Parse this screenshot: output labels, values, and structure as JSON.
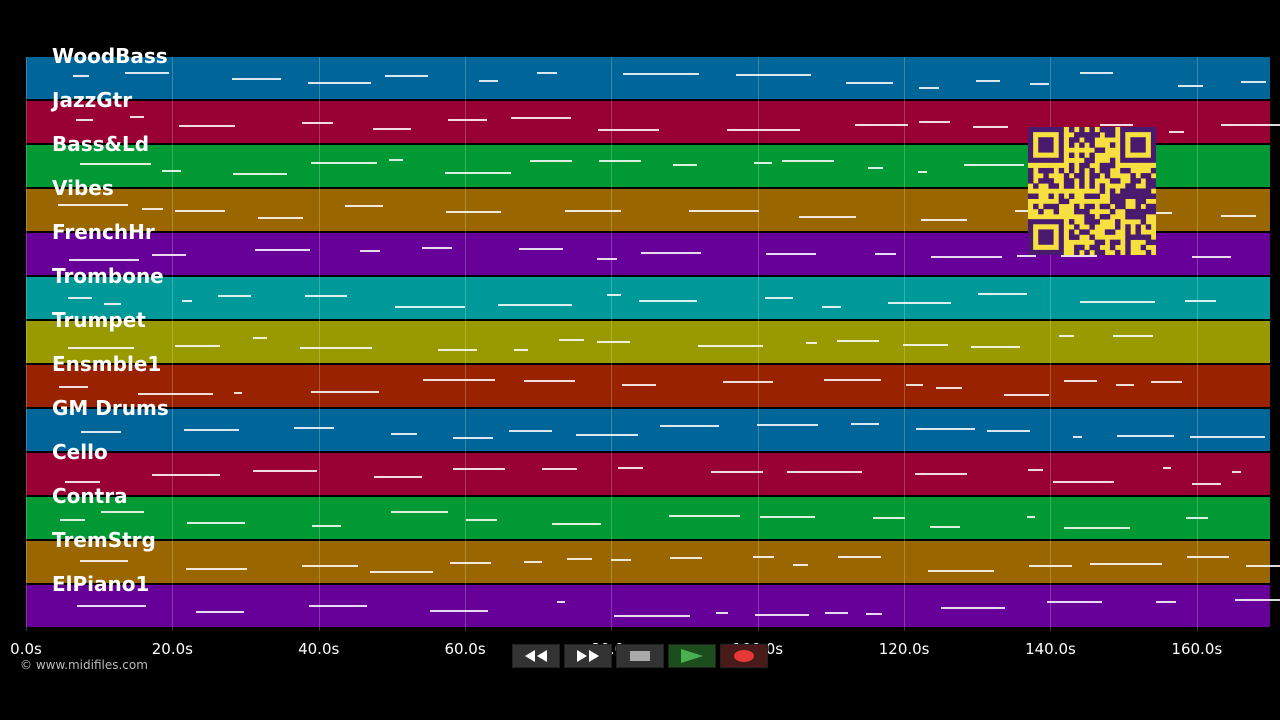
{
  "tracks": [
    {
      "name": "WoodBass",
      "color": "#006699"
    },
    {
      "name": "JazzGtr",
      "color": "#990033"
    },
    {
      "name": "Bass&Ld",
      "color": "#009933"
    },
    {
      "name": "Vibes",
      "color": "#996600"
    },
    {
      "name": "FrenchHr",
      "color": "#660099"
    },
    {
      "name": "Trombone",
      "color": "#009999"
    },
    {
      "name": "Trumpet",
      "color": "#999900"
    },
    {
      "name": "Ensmble1",
      "color": "#992200"
    },
    {
      "name": "GM Drums",
      "color": "#006699"
    },
    {
      "name": "Cello",
      "color": "#990033"
    },
    {
      "name": "Contra",
      "color": "#009933"
    },
    {
      "name": "TremStrg",
      "color": "#996600"
    },
    {
      "name": "ElPiano1",
      "color": "#660099"
    }
  ],
  "timeline": {
    "ticks": [
      "0.0s",
      "20.0s",
      "40.0s",
      "60.0s",
      "80.0s",
      "100.0s",
      "120.0s",
      "140.0s",
      "160.0s"
    ],
    "max_seconds": 170
  },
  "copyright": "© www.midifiles.com",
  "transport": {
    "rewind_icon": "rewind-icon",
    "fastforward_icon": "fast-forward-icon",
    "stop_icon": "stop-icon",
    "play_icon": "play-icon",
    "record_icon": "record-icon"
  },
  "qr_icon": "qr-code-icon"
}
